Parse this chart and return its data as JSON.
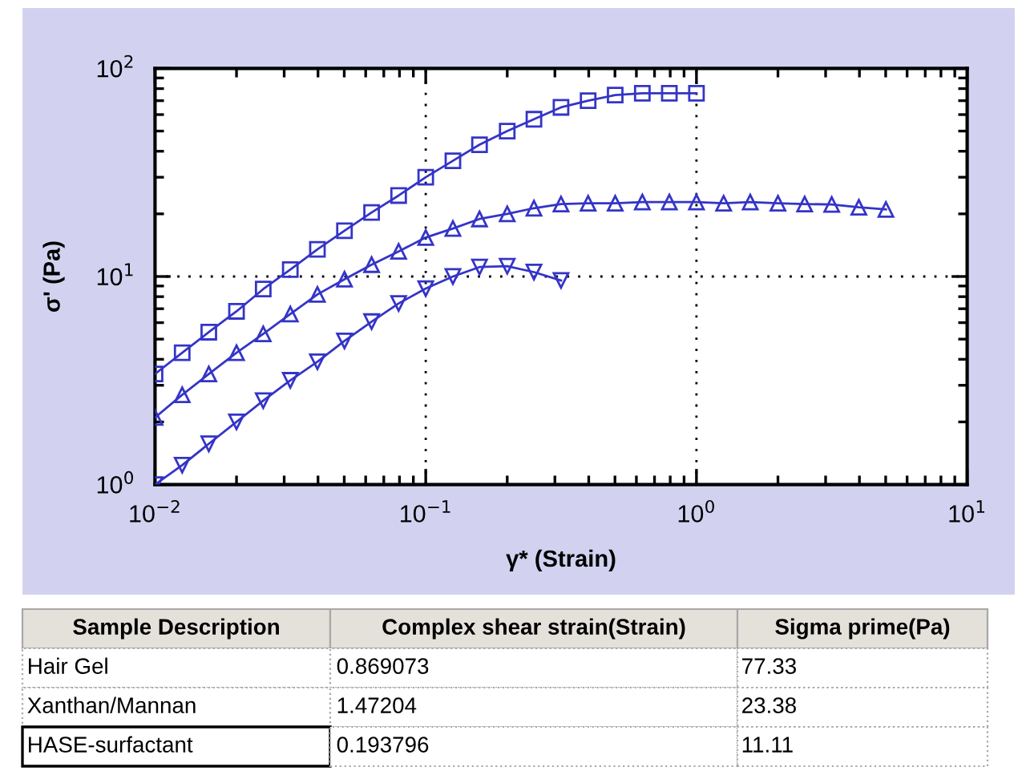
{
  "chart_data": {
    "type": "line",
    "xlabel": "γ* (Strain)",
    "ylabel": "σ' (Pa)",
    "log": "xy",
    "xlim": [
      0.01,
      10
    ],
    "ylim": [
      1,
      100
    ],
    "xticks": [
      {
        "value": 0.01,
        "label": "10$^{−2}$"
      },
      {
        "value": 0.1,
        "label": "10$^{−1}$"
      },
      {
        "value": 1,
        "label": "10$^{0}$"
      },
      {
        "value": 10,
        "label": "10$^{1}$"
      }
    ],
    "yticks": [
      {
        "value": 1,
        "label": "10$^{0}$"
      },
      {
        "value": 10,
        "label": "10$^{1}$"
      },
      {
        "value": 100,
        "label": "10$^{2}$"
      }
    ],
    "grid": true,
    "line_style": "solid",
    "series": [
      {
        "color": "#3434c8",
        "marker": "square",
        "x": [
          0.01,
          0.0126,
          0.0158,
          0.02,
          0.0251,
          0.0316,
          0.0398,
          0.0501,
          0.0631,
          0.0794,
          0.1,
          0.126,
          0.158,
          0.2,
          0.251,
          0.316,
          0.398,
          0.501,
          0.631,
          0.794,
          1.0
        ],
        "values": [
          3.4,
          4.3,
          5.4,
          6.8,
          8.7,
          10.8,
          13.5,
          16.6,
          20.3,
          24.5,
          30,
          36,
          43,
          50,
          57,
          65,
          70,
          74.5,
          76,
          76,
          76
        ]
      },
      {
        "color": "#3434c8",
        "marker": "triangle",
        "x": [
          0.01,
          0.0126,
          0.0158,
          0.02,
          0.0251,
          0.0316,
          0.0398,
          0.0501,
          0.0631,
          0.0794,
          0.1,
          0.126,
          0.158,
          0.2,
          0.251,
          0.316,
          0.398,
          0.501,
          0.631,
          0.794,
          1.0,
          1.26,
          1.58,
          2.0,
          2.51,
          3.16,
          3.98,
          5.01
        ],
        "values": [
          2.1,
          2.7,
          3.4,
          4.3,
          5.3,
          6.6,
          8.2,
          9.7,
          11.4,
          13.2,
          15.4,
          17,
          18.9,
          20,
          21.3,
          22.3,
          22.5,
          22.5,
          22.8,
          22.8,
          22.8,
          22.5,
          22.8,
          22.5,
          22.3,
          22.2,
          21.5,
          21.0
        ]
      },
      {
        "color": "#3434c8",
        "marker": "triangle_down",
        "x": [
          0.01,
          0.0126,
          0.0158,
          0.02,
          0.0251,
          0.0316,
          0.0398,
          0.0501,
          0.0631,
          0.0794,
          0.1,
          0.126,
          0.158,
          0.2,
          0.251,
          0.316
        ],
        "values": [
          1.0,
          1.24,
          1.57,
          2.0,
          2.53,
          3.17,
          3.89,
          4.9,
          6.07,
          7.42,
          8.75,
          10.0,
          11.1,
          11.2,
          10.5,
          9.57
        ]
      }
    ],
    "annotations": [
      "Sample Description",
      "Complex shear strain(Strain)",
      "Sigma prime(Pa)",
      "Hair Gel",
      "0.869073",
      "77.33",
      "Xanthan/Mannan",
      "1.47204",
      "23.38",
      "HASE-surfactant",
      "0.193796",
      "11.11"
    ]
  }
}
